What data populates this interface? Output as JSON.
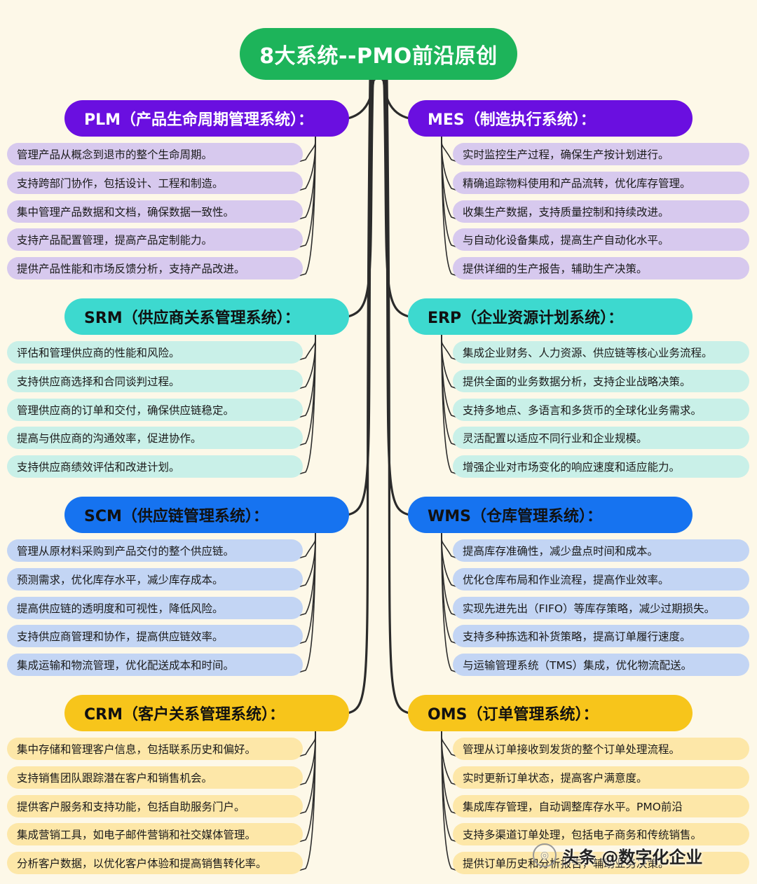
{
  "title": "8大系统--PMO前沿原创",
  "colors": {
    "background": "#fdf8e8",
    "root": "#1db45a",
    "connector": "#2b2b2b"
  },
  "branches": [
    {
      "key": "plm",
      "side": "left",
      "title": "PLM（产品生命周期管理系统）：",
      "header_color": "#6a0fe0",
      "header_text_color": "#ffffff",
      "item_color": "#d7c9ee",
      "items": [
        "管理产品从概念到退市的整个生命周期。",
        "支持跨部门协作，包括设计、工程和制造。",
        "集中管理产品数据和文档，确保数据一致性。",
        "支持产品配置管理，提高产品定制能力。",
        "提供产品性能和市场反馈分析，支持产品改进。"
      ]
    },
    {
      "key": "mes",
      "side": "right",
      "title": "MES（制造执行系统）：",
      "header_color": "#6a0fe0",
      "header_text_color": "#ffffff",
      "item_color": "#d7c9ee",
      "items": [
        "实时监控生产过程，确保生产按计划进行。",
        "精确追踪物料使用和产品流转，优化库存管理。",
        "收集生产数据，支持质量控制和持续改进。",
        "与自动化设备集成，提高生产自动化水平。",
        "提供详细的生产报告，辅助生产决策。"
      ]
    },
    {
      "key": "srm",
      "side": "left",
      "title": "SRM（供应商关系管理系统）：",
      "header_color": "#3dd9cf",
      "header_text_color": "#111111",
      "item_color": "#c9f0e8",
      "items": [
        "评估和管理供应商的性能和风险。",
        "支持供应商选择和合同谈判过程。",
        "管理供应商的订单和交付，确保供应链稳定。",
        "提高与供应商的沟通效率，促进协作。",
        "支持供应商绩效评估和改进计划。"
      ]
    },
    {
      "key": "erp",
      "side": "right",
      "title": "ERP（企业资源计划系统）：",
      "header_color": "#3dd9cf",
      "header_text_color": "#111111",
      "item_color": "#c9f0e8",
      "items": [
        "集成企业财务、人力资源、供应链等核心业务流程。",
        "提供全面的业务数据分析，支持企业战略决策。",
        "支持多地点、多语言和多货币的全球化业务需求。",
        "灵活配置以适应不同行业和企业规模。",
        "增强企业对市场变化的响应速度和适应能力。"
      ]
    },
    {
      "key": "scm",
      "side": "left",
      "title": "SCM（供应链管理系统）：",
      "header_color": "#1673f0",
      "header_text_color": "#111111",
      "item_color": "#c3d5f4",
      "items": [
        "管理从原材料采购到产品交付的整个供应链。",
        "预测需求，优化库存水平，减少库存成本。",
        "提高供应链的透明度和可视性，降低风险。",
        "支持供应商管理和协作，提高供应链效率。",
        "集成运输和物流管理，优化配送成本和时间。"
      ]
    },
    {
      "key": "wms",
      "side": "right",
      "title": "WMS（仓库管理系统）：",
      "header_color": "#1673f0",
      "header_text_color": "#111111",
      "item_color": "#c3d5f4",
      "items": [
        "提高库存准确性，减少盘点时间和成本。",
        "优化仓库布局和作业流程，提高作业效率。",
        "实现先进先出（FIFO）等库存策略，减少过期损失。",
        "支持多种拣选和补货策略，提高订单履行速度。",
        "与运输管理系统（TMS）集成，优化物流配送。"
      ]
    },
    {
      "key": "crm",
      "side": "left",
      "title": "CRM（客户关系管理系统）：",
      "header_color": "#f7c51b",
      "header_text_color": "#111111",
      "item_color": "#fde7a8",
      "items": [
        "集中存储和管理客户信息，包括联系历史和偏好。",
        "支持销售团队跟踪潜在客户和销售机会。",
        "提供客户服务和支持功能，包括自助服务门户。",
        "集成营销工具，如电子邮件营销和社交媒体管理。",
        "分析客户数据，以优化客户体验和提高销售转化率。"
      ]
    },
    {
      "key": "oms",
      "side": "right",
      "title": "OMS（订单管理系统）：",
      "header_color": "#f7c51b",
      "header_text_color": "#111111",
      "item_color": "#fde7a8",
      "items": [
        "管理从订单接收到发货的整个订单处理流程。",
        "实时更新订单状态，提高客户满意度。",
        "集成库存管理，自动调整库存水平。PMO前沿",
        "支持多渠道订单处理，包括电子商务和传统销售。",
        "提供订单历史和分析报告，辅助业务决策。"
      ]
    }
  ],
  "watermark": {
    "icon": "wechat-icon",
    "text": "头条 @数字化企业"
  }
}
